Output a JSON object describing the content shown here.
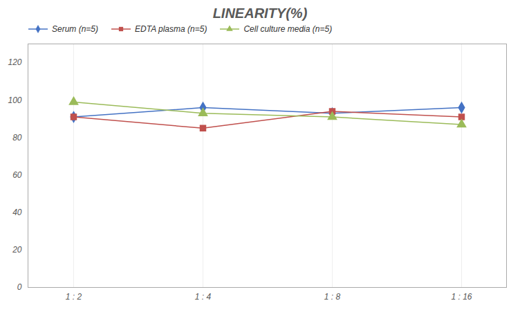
{
  "chart_data": {
    "type": "line",
    "title": "LINEARITY(%)",
    "categories": [
      "1 : 2",
      "1 : 4",
      "1 : 8",
      "1 : 16"
    ],
    "series": [
      {
        "name": "Serum (n=5)",
        "color": "#4472C4",
        "marker": "diamond",
        "line_style": "solid",
        "values": [
          91,
          96,
          93,
          96
        ]
      },
      {
        "name": "EDTA plasma (n=5)",
        "color": "#C0504D",
        "marker": "square",
        "line_style": "solid",
        "values": [
          91,
          85,
          94,
          91
        ]
      },
      {
        "name": "Cell culture media (n=5)",
        "color": "#9BBB59",
        "marker": "triangle",
        "line_style": "solid",
        "values": [
          99,
          93,
          91,
          87
        ]
      }
    ],
    "ylim": [
      0,
      130
    ],
    "yticks": [
      0,
      20,
      40,
      60,
      80,
      100,
      120
    ],
    "grid": "x",
    "legend": "upper left"
  }
}
